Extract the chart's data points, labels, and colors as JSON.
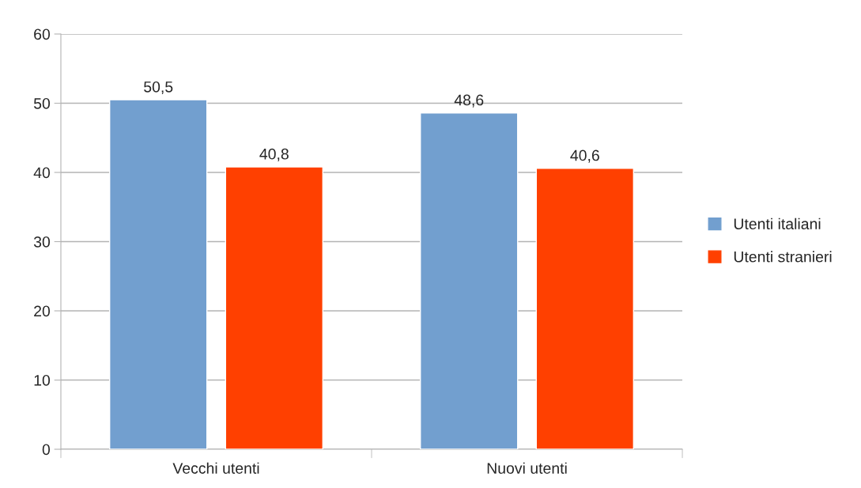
{
  "chart_data": {
    "type": "bar",
    "categories": [
      "Vecchi utenti",
      "Nuovi utenti"
    ],
    "series": [
      {
        "name": "Utenti italiani",
        "color": "#729fcf",
        "values": [
          50.5,
          48.6
        ],
        "value_labels": [
          "50,5",
          "48,6"
        ]
      },
      {
        "name": "Utenti stranieri",
        "color": "#ff4000",
        "values": [
          40.8,
          40.6
        ],
        "value_labels": [
          "40,8",
          "40,6"
        ]
      }
    ],
    "ylim": [
      0,
      60
    ],
    "yticks": [
      0,
      10,
      20,
      30,
      40,
      50,
      60
    ],
    "grid": "y",
    "legend": "right"
  }
}
